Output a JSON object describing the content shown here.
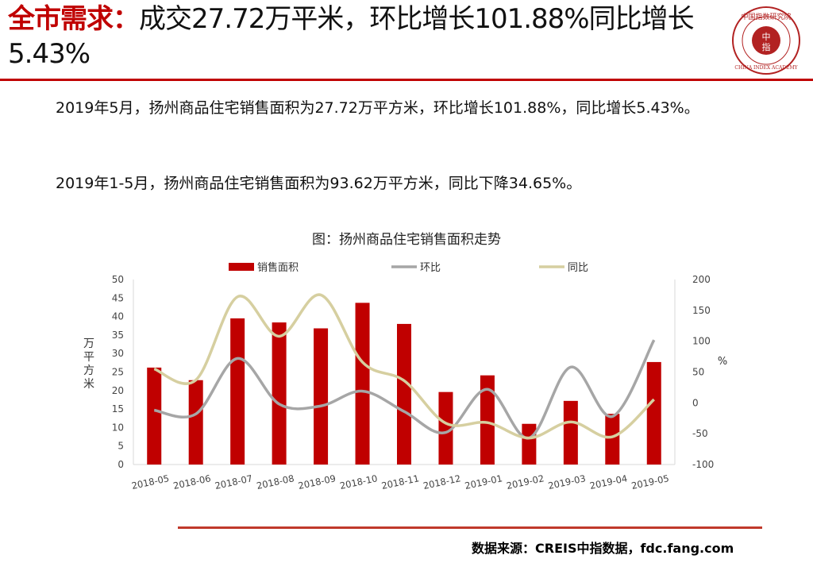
{
  "header": {
    "title_highlight": "全市需求：",
    "title_rest": "成交27.72万平米，环比增长101.88%同比增长5.43%"
  },
  "logo": {
    "outer_text": "中国指数研究院",
    "center_text_top": "中",
    "center_text_bottom": "指",
    "english_text": "CHINA INDEX ACADEMY",
    "color": "#b22222"
  },
  "body": {
    "paragraph1": "2019年5月，扬州商品住宅销售面积为27.72万平方米，环比增长101.88%，同比增长5.43%。",
    "paragraph2": "2019年1-5月，扬州商品住宅销售面积为93.62万平方米，同比下降34.65%。"
  },
  "chart_data": {
    "type": "bar",
    "title": "图：扬州商品住宅销售面积走势",
    "categories": [
      "2018-05",
      "2018-06",
      "2018-07",
      "2018-08",
      "2018-09",
      "2018-10",
      "2018-11",
      "2018-12",
      "2019-01",
      "2019-02",
      "2019-03",
      "2019-04",
      "2019-05"
    ],
    "ylabel": "万平方米",
    "y2label": "%",
    "ylim": [
      0,
      50
    ],
    "yticks": [
      0,
      5,
      10,
      15,
      20,
      25,
      30,
      35,
      40,
      45,
      50
    ],
    "y2lim": [
      -100,
      200
    ],
    "y2ticks": [
      -100,
      -50,
      0,
      50,
      100,
      150,
      200
    ],
    "series": [
      {
        "name": "销售面积",
        "kind": "bar",
        "axis": "left",
        "color": "#c00000",
        "values": [
          26.2,
          22.8,
          39.5,
          38.4,
          36.8,
          43.7,
          38.0,
          19.6,
          24.1,
          11.0,
          17.2,
          13.7,
          27.7
        ]
      },
      {
        "name": "环比",
        "kind": "line",
        "axis": "right",
        "color": "#a6a6a6",
        "values": [
          -12,
          -18,
          72,
          -2,
          -5,
          19,
          -14,
          -48,
          22,
          -57,
          58,
          -22,
          101.88
        ]
      },
      {
        "name": "同比",
        "kind": "line",
        "axis": "right",
        "color": "#d6cfa0",
        "values": [
          55,
          37,
          172,
          108,
          175,
          66,
          36,
          -33,
          -32,
          -57,
          -31,
          -55,
          5.43
        ]
      }
    ],
    "legend": "top",
    "grid": false
  },
  "footer": {
    "source": "数据来源：CREIS中指数据，fdc.fang.com"
  }
}
